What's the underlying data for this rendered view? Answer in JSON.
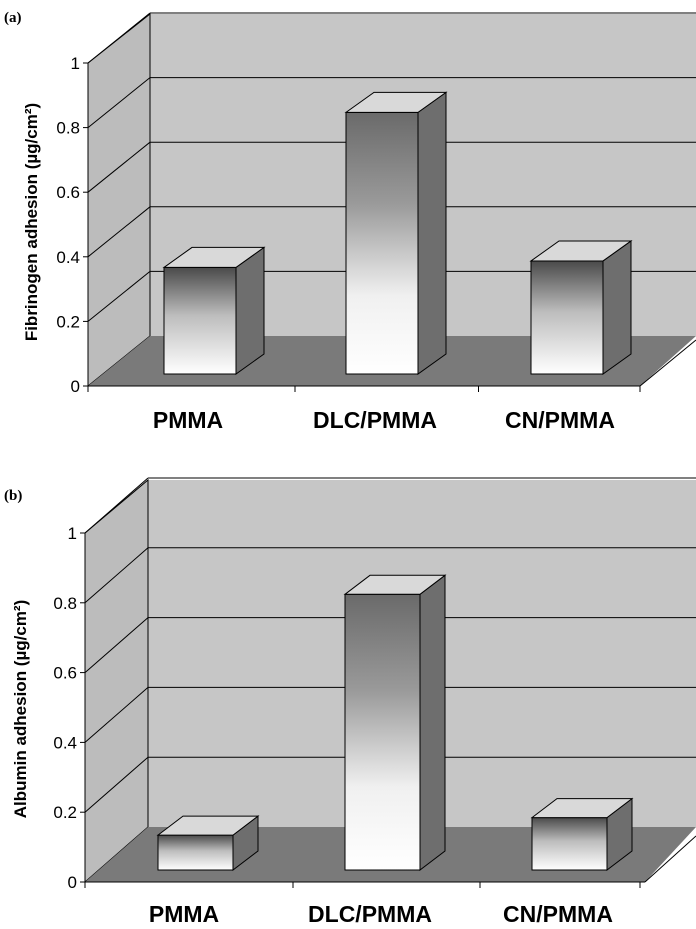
{
  "chart_data": [
    {
      "type": "bar",
      "panel_label": "(a)",
      "ylabel": "Fibrinogen adhesion (µg/cm²)",
      "xlabel": "",
      "categories": [
        "PMMA",
        "DLC/PMMA",
        "CN/PMMA"
      ],
      "values": [
        0.33,
        0.81,
        0.35
      ],
      "ylim": [
        0,
        1
      ],
      "yticks": [
        "0",
        "0.2",
        "0.4",
        "0.6",
        "0.8",
        "1"
      ],
      "grid": true,
      "style": "3d-column"
    },
    {
      "type": "bar",
      "panel_label": "(b)",
      "ylabel": "Albumin adhesion (µg/cm²)",
      "xlabel": "",
      "categories": [
        "PMMA",
        "DLC/PMMA",
        "CN/PMMA"
      ],
      "values": [
        0.1,
        0.79,
        0.15
      ],
      "ylim": [
        0,
        1
      ],
      "yticks": [
        "0",
        "0.2",
        "0.4",
        "0.6",
        "0.8",
        "1"
      ],
      "grid": true,
      "style": "3d-column"
    }
  ],
  "colors": {
    "back_wall": "#c6c6c6",
    "side_wall": "#bcbcbc",
    "floor": "#7a7a7a",
    "bar_top": "#d9d9d9",
    "bar_side": "#6e6e6e",
    "grid": "#000000"
  }
}
